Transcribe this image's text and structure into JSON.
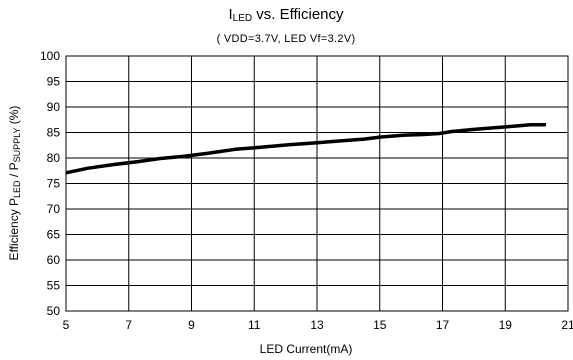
{
  "chart_data": {
    "type": "line",
    "title": {
      "main": "I",
      "main_sub": "LED",
      "main_rest": " vs. Efficiency"
    },
    "subtitle": "( VDD=3.7V, LED Vf=3.2V)",
    "xlabel": "LED Current(mA)",
    "ylabel": {
      "p1": "Efficiency P",
      "s1": "LED",
      "p2": " / P",
      "s2": "SUPPLY",
      "p3": " (%)"
    },
    "xlim": [
      5,
      21
    ],
    "ylim": [
      50,
      100
    ],
    "xticks": [
      "5",
      "7",
      "9",
      "11",
      "13",
      "15",
      "17",
      "19",
      "21"
    ],
    "yticks": [
      "50",
      "55",
      "60",
      "65",
      "70",
      "75",
      "80",
      "85",
      "90",
      "95",
      "100"
    ],
    "grid": true,
    "series": [
      {
        "color": "#000000",
        "x": [
          5.0,
          5.7,
          6.5,
          7.3,
          8.0,
          8.7,
          9.5,
          10.4,
          11.2,
          12.1,
          13.0,
          13.8,
          14.5,
          15.0,
          15.8,
          16.4,
          16.9,
          17.3,
          18.0,
          18.6,
          19.2,
          19.8,
          20.3
        ],
        "y": [
          77.1,
          78.0,
          78.7,
          79.3,
          79.9,
          80.3,
          80.9,
          81.7,
          82.1,
          82.6,
          83.0,
          83.4,
          83.7,
          84.1,
          84.5,
          84.6,
          84.8,
          85.2,
          85.6,
          85.9,
          86.2,
          86.5,
          86.5
        ]
      }
    ]
  }
}
